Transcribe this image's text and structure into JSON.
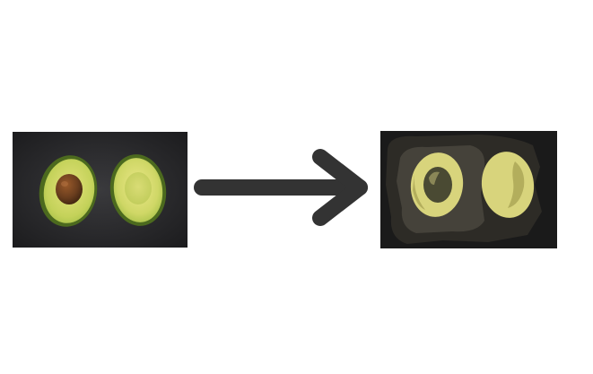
{
  "scene": {
    "background_color": "#ffffff",
    "left_image": {
      "subject": "avocado-halves-photo",
      "style": "photograph",
      "colors": {
        "slate_dark": "#1c1c1e",
        "slate_light": "#3a3a3d",
        "skin": "#5f7d2a",
        "flesh_outer": "#a9c24a",
        "flesh_inner": "#e4e27c",
        "pit": "#6b3e1e"
      }
    },
    "arrow": {
      "direction": "right",
      "color": "#333333"
    },
    "right_image": {
      "subject": "posterized-avocado-halves",
      "style": "posterized",
      "colors": {
        "background": "#1a1a1a",
        "halo_dark": "#2d2b26",
        "halo_light": "#45423a",
        "flesh": "#d8d47c",
        "flesh_shade": "#b3ae5c",
        "pit": "#4a4a33",
        "pit_highlight": "#8a8757"
      }
    }
  }
}
